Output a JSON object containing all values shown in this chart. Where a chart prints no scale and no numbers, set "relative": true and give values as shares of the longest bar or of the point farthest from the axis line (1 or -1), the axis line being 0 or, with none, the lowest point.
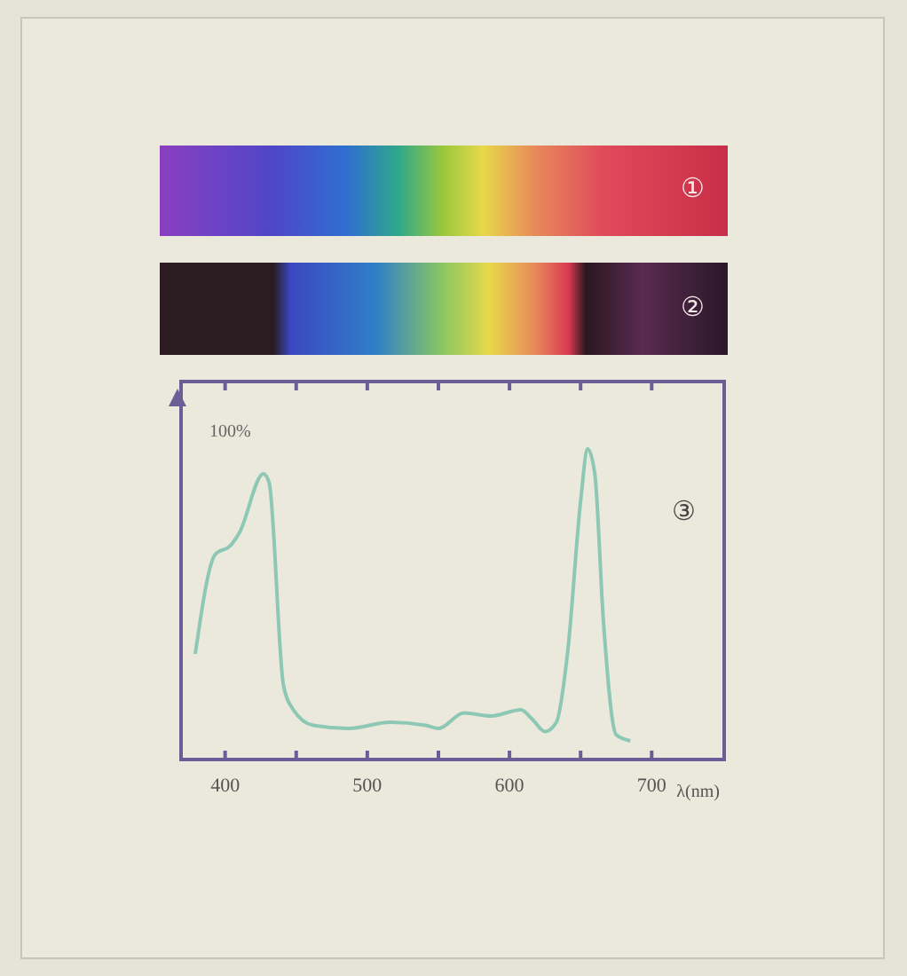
{
  "chart_data": {
    "type": "line",
    "relative": true,
    "xlabel": "λ(nm)",
    "xlim": [
      369,
      751
    ],
    "xticks": [
      400,
      {
        "value": 450,
        "label": null
      },
      500,
      {
        "value": 550,
        "label": null
      },
      600,
      {
        "value": 650,
        "label": null
      },
      {
        "value": 700,
        "label": "700"
      }
    ],
    "annotations": [
      "①",
      "②",
      "③",
      "100%"
    ],
    "series": [
      {
        "color": "#8cc8b4",
        "x": [
          379,
          393,
          404,
          410,
          427,
          431,
          441,
          448,
          462,
          487,
          516,
          541,
          550,
          568,
          587,
          608,
          616,
          625,
          633,
          641,
          650,
          655,
          660,
          666,
          675,
          685
        ],
        "values": [
          0.34,
          0.66,
          0.69,
          0.73,
          0.92,
          0.89,
          0.24,
          0.16,
          0.11,
          0.1,
          0.12,
          0.11,
          0.1,
          0.15,
          0.14,
          0.16,
          0.13,
          0.09,
          0.12,
          0.35,
          0.83,
          1.0,
          0.92,
          0.45,
          0.08,
          0.06
        ]
      }
    ],
    "marker": "none",
    "line_style": "solid"
  }
}
